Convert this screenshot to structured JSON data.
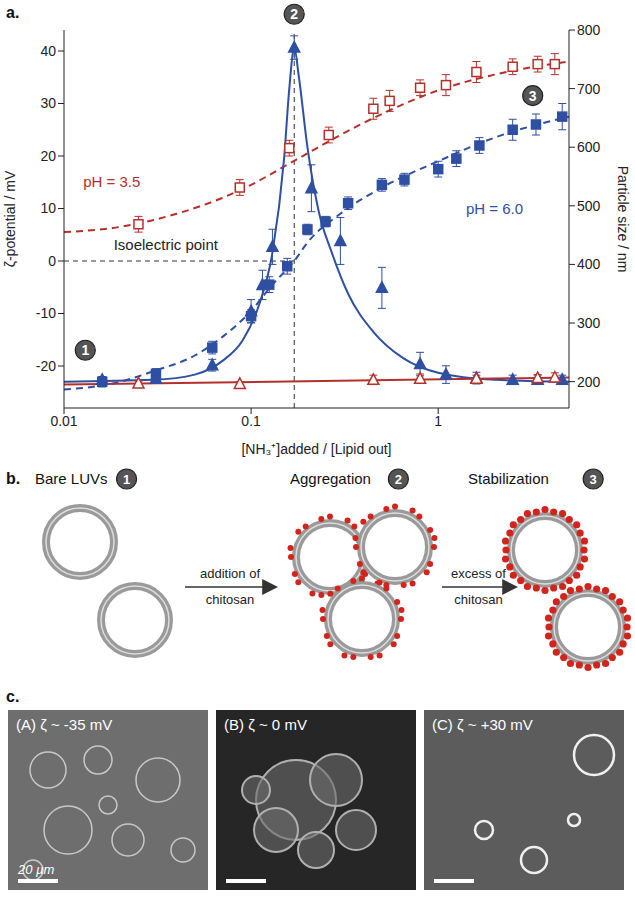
{
  "chart_data": {
    "type": "scatter",
    "panel_label": "a.",
    "x_label": "[NH₃⁺]added / [Lipid out]",
    "y_label": "ζ-potential / mV",
    "y2_label": "Particle size / nm",
    "log": "x",
    "xlim": [
      0.01,
      5
    ],
    "xticks": [
      0.01,
      0.1,
      1
    ],
    "ylim": [
      -28,
      44
    ],
    "yticks": [
      -20,
      -10,
      0,
      10,
      20,
      30,
      40
    ],
    "y2lim": [
      155,
      800
    ],
    "y2ticks": [
      200,
      300,
      400,
      500,
      600,
      700,
      800
    ],
    "series": [
      {
        "type": "line",
        "line_style": "dashed",
        "color": "#2f4fa3",
        "axis": "y",
        "x": [
          0.01,
          0.02,
          0.03,
          0.05,
          0.07,
          0.1,
          0.13,
          0.17,
          0.2,
          0.3,
          0.5,
          1,
          2,
          5
        ],
        "values": [
          -24.5,
          -23,
          -21,
          -18,
          -14.5,
          -9.5,
          -4.5,
          0,
          3.5,
          9,
          14,
          19,
          23.5,
          27.5
        ]
      },
      {
        "type": "line",
        "line_style": "dashed",
        "color": "#b5302a",
        "axis": "y",
        "x": [
          0.01,
          0.02,
          0.04,
          0.07,
          0.1,
          0.15,
          0.2,
          0.3,
          0.5,
          1,
          2,
          5
        ],
        "values": [
          5.5,
          6.5,
          9,
          12,
          14.5,
          18,
          20.5,
          24,
          28,
          32.5,
          35.5,
          38
        ]
      },
      {
        "type": "line",
        "line_style": "solid",
        "color": "#2f4fa3",
        "axis": "y2",
        "x": [
          0.01,
          0.03,
          0.05,
          0.07,
          0.09,
          0.11,
          0.13,
          0.15,
          0.16,
          0.17,
          0.18,
          0.2,
          0.23,
          0.27,
          0.33,
          0.45,
          0.65,
          1,
          2,
          5
        ],
        "values": [
          200,
          203,
          212,
          235,
          270,
          330,
          420,
          580,
          700,
          770,
          720,
          600,
          490,
          420,
          350,
          285,
          240,
          215,
          203,
          200
        ]
      },
      {
        "type": "line",
        "line_style": "solid",
        "color": "#b5302a",
        "axis": "y2",
        "x": [
          0.01,
          5
        ],
        "values": [
          195,
          207
        ]
      },
      {
        "type": "scatter",
        "marker": "square",
        "color": "#2f4fa3",
        "axis": "y",
        "x": [
          0.016,
          0.031,
          0.062,
          0.1,
          0.125,
          0.156,
          0.2,
          0.25,
          0.33,
          0.5,
          0.66,
          1.0,
          1.25,
          1.66,
          2.5,
          3.33,
          4.6
        ],
        "values": [
          -23,
          -21.5,
          -16.5,
          -10.5,
          -4.5,
          -1,
          6,
          7.5,
          11,
          14.5,
          15.5,
          17.5,
          19.5,
          22,
          25,
          26,
          27.5
        ],
        "errors": [
          1,
          1,
          1.2,
          1.2,
          1.5,
          1.5,
          1,
          1,
          1.2,
          1.2,
          1.2,
          1.5,
          1.5,
          1.5,
          2,
          2,
          2.5
        ]
      },
      {
        "type": "scatter",
        "marker": "square_open",
        "color": "#b5302a",
        "axis": "y",
        "x": [
          0.025,
          0.087,
          0.16,
          0.26,
          0.45,
          0.55,
          0.8,
          1.1,
          1.6,
          2.5,
          3.4,
          4.2
        ],
        "values": [
          7,
          14,
          21.5,
          24,
          29,
          30.5,
          33,
          33.5,
          36,
          37,
          37.5,
          37.5
        ],
        "errors": [
          1.5,
          1.5,
          1.5,
          1.5,
          2,
          2,
          1.5,
          2,
          2,
          1.5,
          1.5,
          2
        ]
      },
      {
        "type": "scatter",
        "marker": "triangle",
        "color": "#2f4fa3",
        "axis": "y2",
        "x": [
          0.016,
          0.031,
          0.062,
          0.1,
          0.115,
          0.13,
          0.17,
          0.21,
          0.3,
          0.5,
          0.8,
          1.1,
          1.6,
          2.5,
          3.4,
          4.6
        ],
        "values": [
          203,
          205,
          228,
          320,
          365,
          430,
          770,
          530,
          440,
          360,
          230,
          212,
          206,
          203,
          203,
          203
        ],
        "errors": [
          5,
          5,
          10,
          20,
          25,
          30,
          20,
          40,
          40,
          35,
          20,
          15,
          10,
          8,
          8,
          8
        ]
      },
      {
        "type": "scatter",
        "marker": "triangle_open",
        "color": "#b5302a",
        "axis": "y2",
        "x": [
          0.025,
          0.087,
          0.45,
          0.8,
          1.6,
          3.4,
          4.2
        ],
        "values": [
          197,
          196,
          203,
          205,
          205,
          206,
          207
        ],
        "errors": [
          4,
          4,
          8,
          8,
          6,
          6,
          8
        ]
      }
    ],
    "reference_lines": [
      {
        "x": 0.17
      },
      {
        "y": 0,
        "x_from": 0.01,
        "x_to": 0.17
      }
    ],
    "annotations": [
      {
        "text": "pH = 3.5",
        "x": 0.018,
        "y": 15,
        "color": "#b5302a"
      },
      {
        "text": "pH = 6.0",
        "x": 2.0,
        "y": 10,
        "color": "#2f4fa3"
      },
      {
        "text": "Isoelectric point",
        "x": 0.035,
        "y": 3,
        "color": "#222222"
      },
      {
        "text": "1",
        "x": 0.013,
        "y": -17,
        "marker": "circle",
        "color": "#555555"
      },
      {
        "text": "2",
        "x": 0.17,
        "y": 47,
        "marker": "circle",
        "color": "#555555"
      },
      {
        "text": "3",
        "x": 3.2,
        "y": 31.5,
        "marker": "circle",
        "color": "#555555"
      }
    ]
  },
  "diagram": {
    "panel_label": "b.",
    "stages": [
      {
        "label": "Bare LUVs",
        "number": "1"
      },
      {
        "label": "Aggregation",
        "number": "2"
      },
      {
        "label": "Stabilization",
        "number": "3"
      }
    ],
    "transitions": [
      "addition of chitosan",
      "excess of chitosan"
    ]
  },
  "micrographs": {
    "panel_label": "c.",
    "images": [
      {
        "label": "(A)",
        "zeta": "ζ ~ -35 mV"
      },
      {
        "label": "(B)",
        "zeta": "ζ ~ 0 mV"
      },
      {
        "label": "(C)",
        "zeta": "ζ ~ +30 mV"
      }
    ],
    "scale_bar": "20 µm"
  }
}
